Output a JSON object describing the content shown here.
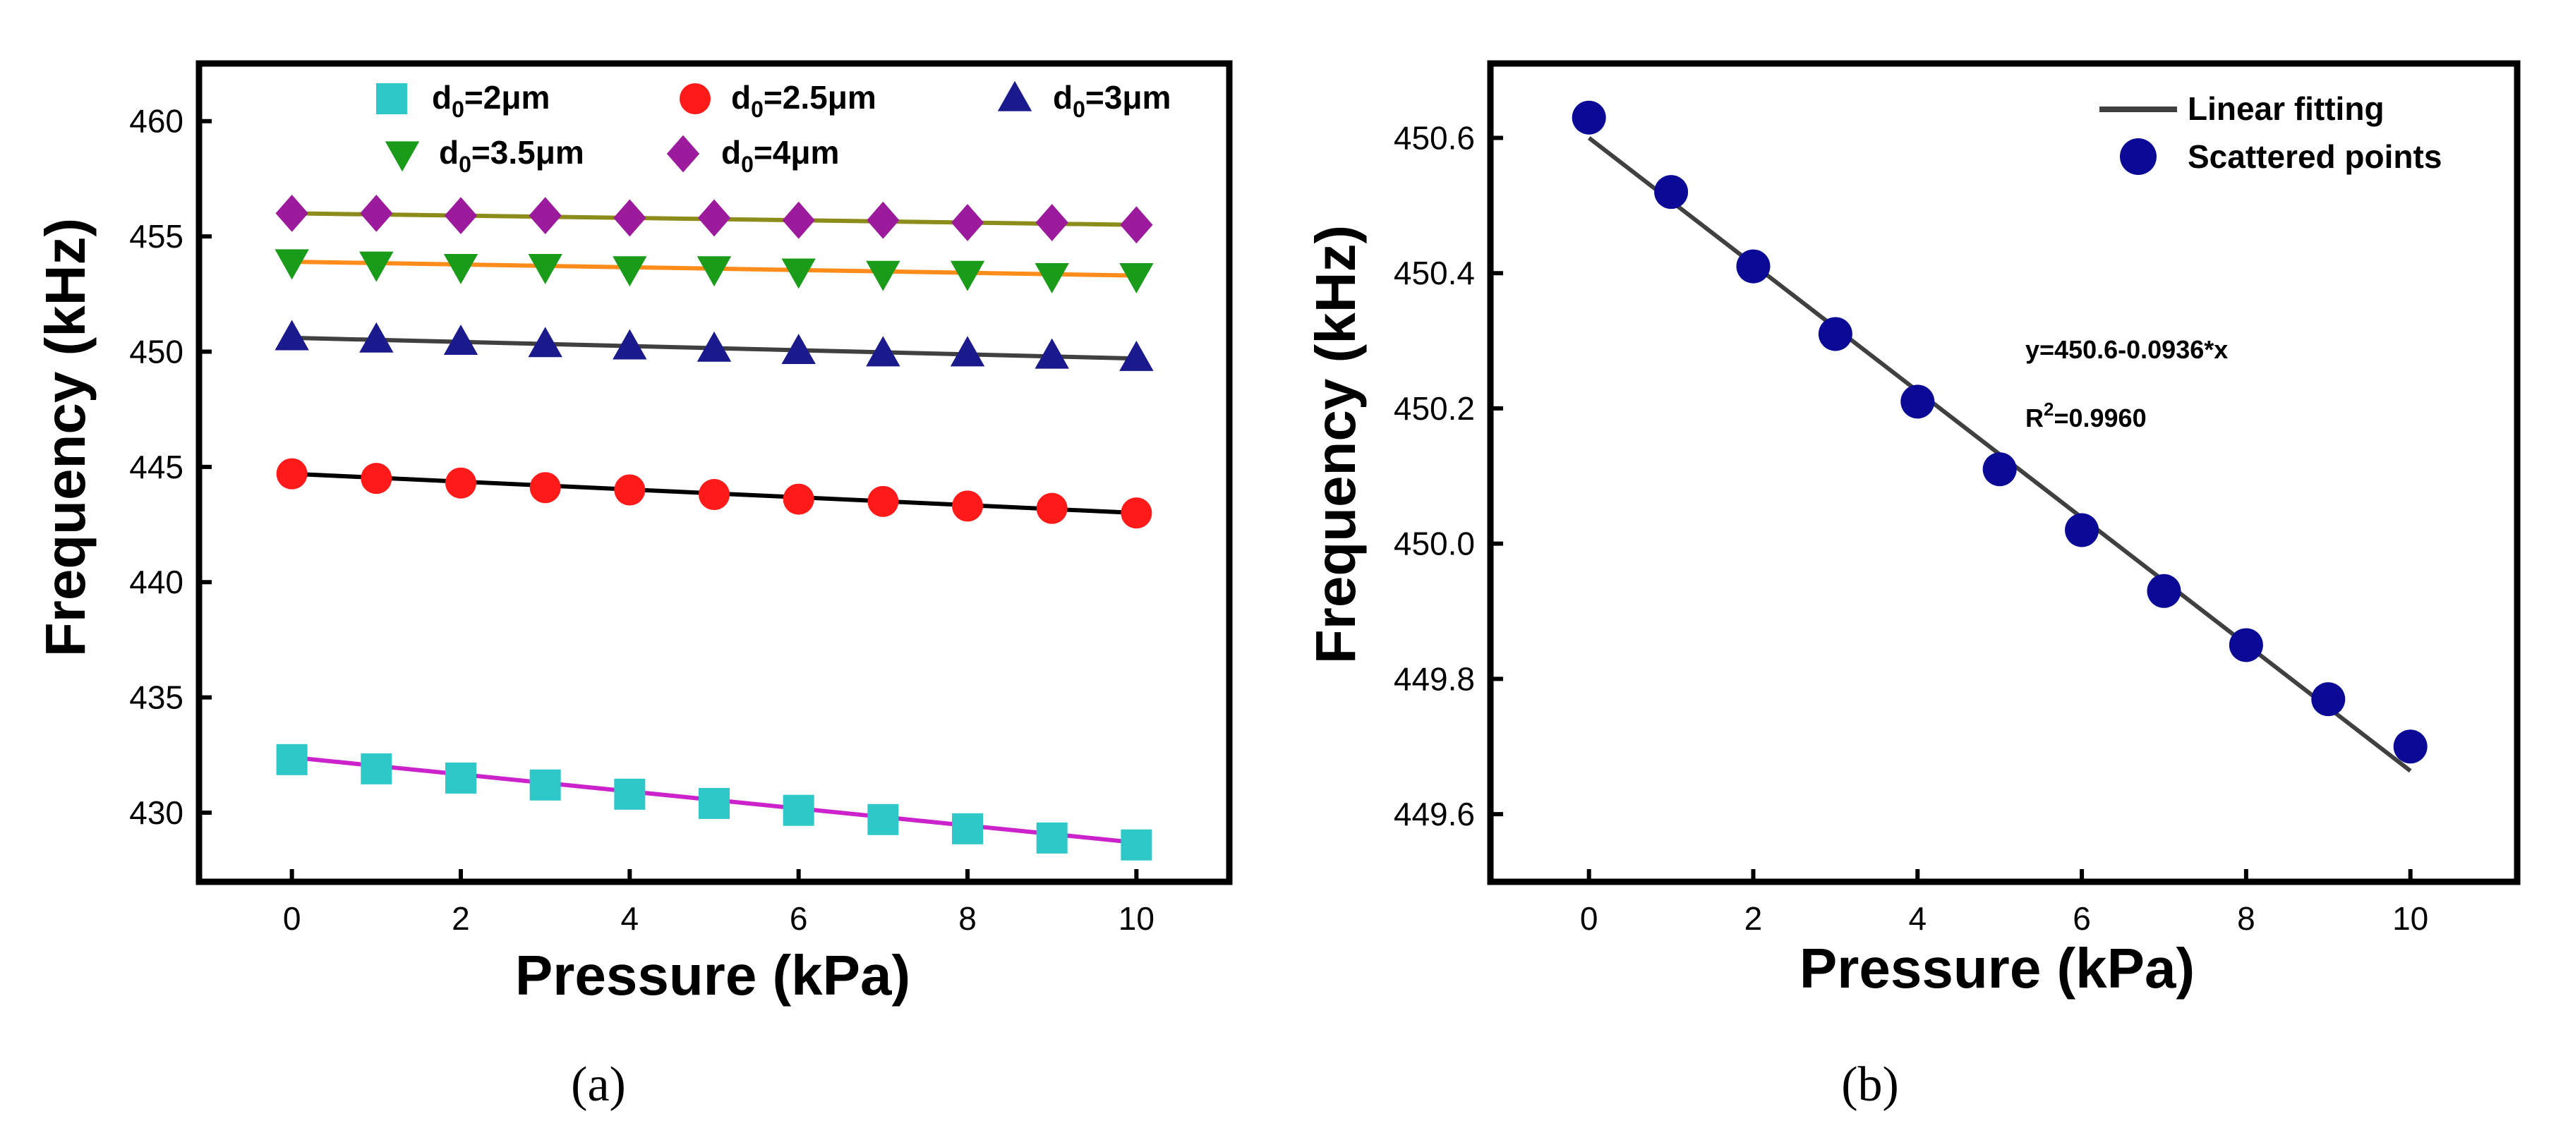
{
  "colors": {
    "axis": "#000000",
    "fit_b": "#404040"
  },
  "chart_data": [
    {
      "id": "a",
      "type": "scatter",
      "caption": "(a)",
      "xlabel": "Pressure (kPa)",
      "ylabel": "Frequency (kHz)",
      "xlim": [
        -1.1,
        11.1
      ],
      "ylim": [
        427,
        462.5
      ],
      "xticks": [
        0,
        2,
        4,
        6,
        8,
        10
      ],
      "yticks": [
        430,
        435,
        440,
        445,
        450,
        455,
        460
      ],
      "x": [
        0,
        1,
        2,
        3,
        4,
        5,
        6,
        7,
        8,
        9,
        10
      ],
      "series": [
        {
          "name": "d0=2μm",
          "label_base": "d",
          "label_sub": "0",
          "label_rest": "=2μm",
          "marker": "square",
          "color": "#2ec8c8",
          "fit_color": "#cc22cc",
          "values": [
            432.3,
            431.9,
            431.5,
            431.2,
            430.8,
            430.4,
            430.1,
            429.7,
            429.3,
            428.9,
            428.6
          ],
          "fit": [
            432.4,
            428.7
          ]
        },
        {
          "name": "d0=2.5μm",
          "label_base": "d",
          "label_sub": "0",
          "label_rest": "=2.5μm",
          "marker": "circle",
          "color": "#ff1a1a",
          "fit_color": "#000000",
          "values": [
            444.7,
            444.5,
            444.3,
            444.1,
            444.0,
            443.8,
            443.6,
            443.5,
            443.3,
            443.2,
            443.0
          ],
          "fit": [
            444.7,
            443.0
          ]
        },
        {
          "name": "d0=3μm",
          "label_base": "d",
          "label_sub": "0",
          "label_rest": "=3μm",
          "marker": "triangle-up",
          "color": "#1a1a8c",
          "fit_color": "#404040",
          "values": [
            450.6,
            450.5,
            450.4,
            450.3,
            450.2,
            450.1,
            450.0,
            449.9,
            449.9,
            449.8,
            449.7
          ],
          "fit": [
            450.6,
            449.7
          ]
        },
        {
          "name": "d0=3.5μm",
          "label_base": "d",
          "label_sub": "0",
          "label_rest": "=3.5μm",
          "marker": "triangle-down",
          "color": "#1a9c1a",
          "fit_color": "#ff8c1a",
          "values": [
            453.9,
            453.8,
            453.7,
            453.7,
            453.6,
            453.6,
            453.5,
            453.4,
            453.4,
            453.3,
            453.3
          ],
          "fit": [
            453.9,
            453.3
          ]
        },
        {
          "name": "d0=4μm",
          "label_base": "d",
          "label_sub": "0",
          "label_rest": "=4μm",
          "marker": "diamond",
          "color": "#9c1a9c",
          "fit_color": "#8c8c1a",
          "values": [
            456.0,
            456.0,
            455.9,
            455.9,
            455.8,
            455.8,
            455.7,
            455.7,
            455.6,
            455.6,
            455.5
          ],
          "fit": [
            456.0,
            455.5
          ]
        }
      ]
    },
    {
      "id": "b",
      "type": "scatter",
      "caption": "(b)",
      "xlabel": "Pressure (kPa)",
      "ylabel": "Frequency (kHz)",
      "xlim": [
        -1.2,
        11.3
      ],
      "ylim": [
        449.5,
        450.71
      ],
      "xticks": [
        0,
        2,
        4,
        6,
        8,
        10
      ],
      "yticks": [
        449.6,
        449.8,
        450.0,
        450.2,
        450.4,
        450.6
      ],
      "ytick_labels": [
        "449.6",
        "449.8",
        "450.0",
        "450.2",
        "450.4",
        "450.6"
      ],
      "x": [
        0,
        1,
        2,
        3,
        4,
        5,
        6,
        7,
        8,
        9,
        10
      ],
      "scatter_name": "Scattered points",
      "scatter_color": "#0a0a96",
      "values": [
        450.63,
        450.52,
        450.41,
        450.31,
        450.21,
        450.11,
        450.02,
        449.93,
        449.85,
        449.77,
        449.7
      ],
      "fit_name": "Linear fitting",
      "fit": [
        450.6,
        449.664
      ],
      "equation": "y=450.6-0.0936*x",
      "r2_base": "R",
      "r2_sup": "2",
      "r2_rest": "=0.9960"
    }
  ]
}
